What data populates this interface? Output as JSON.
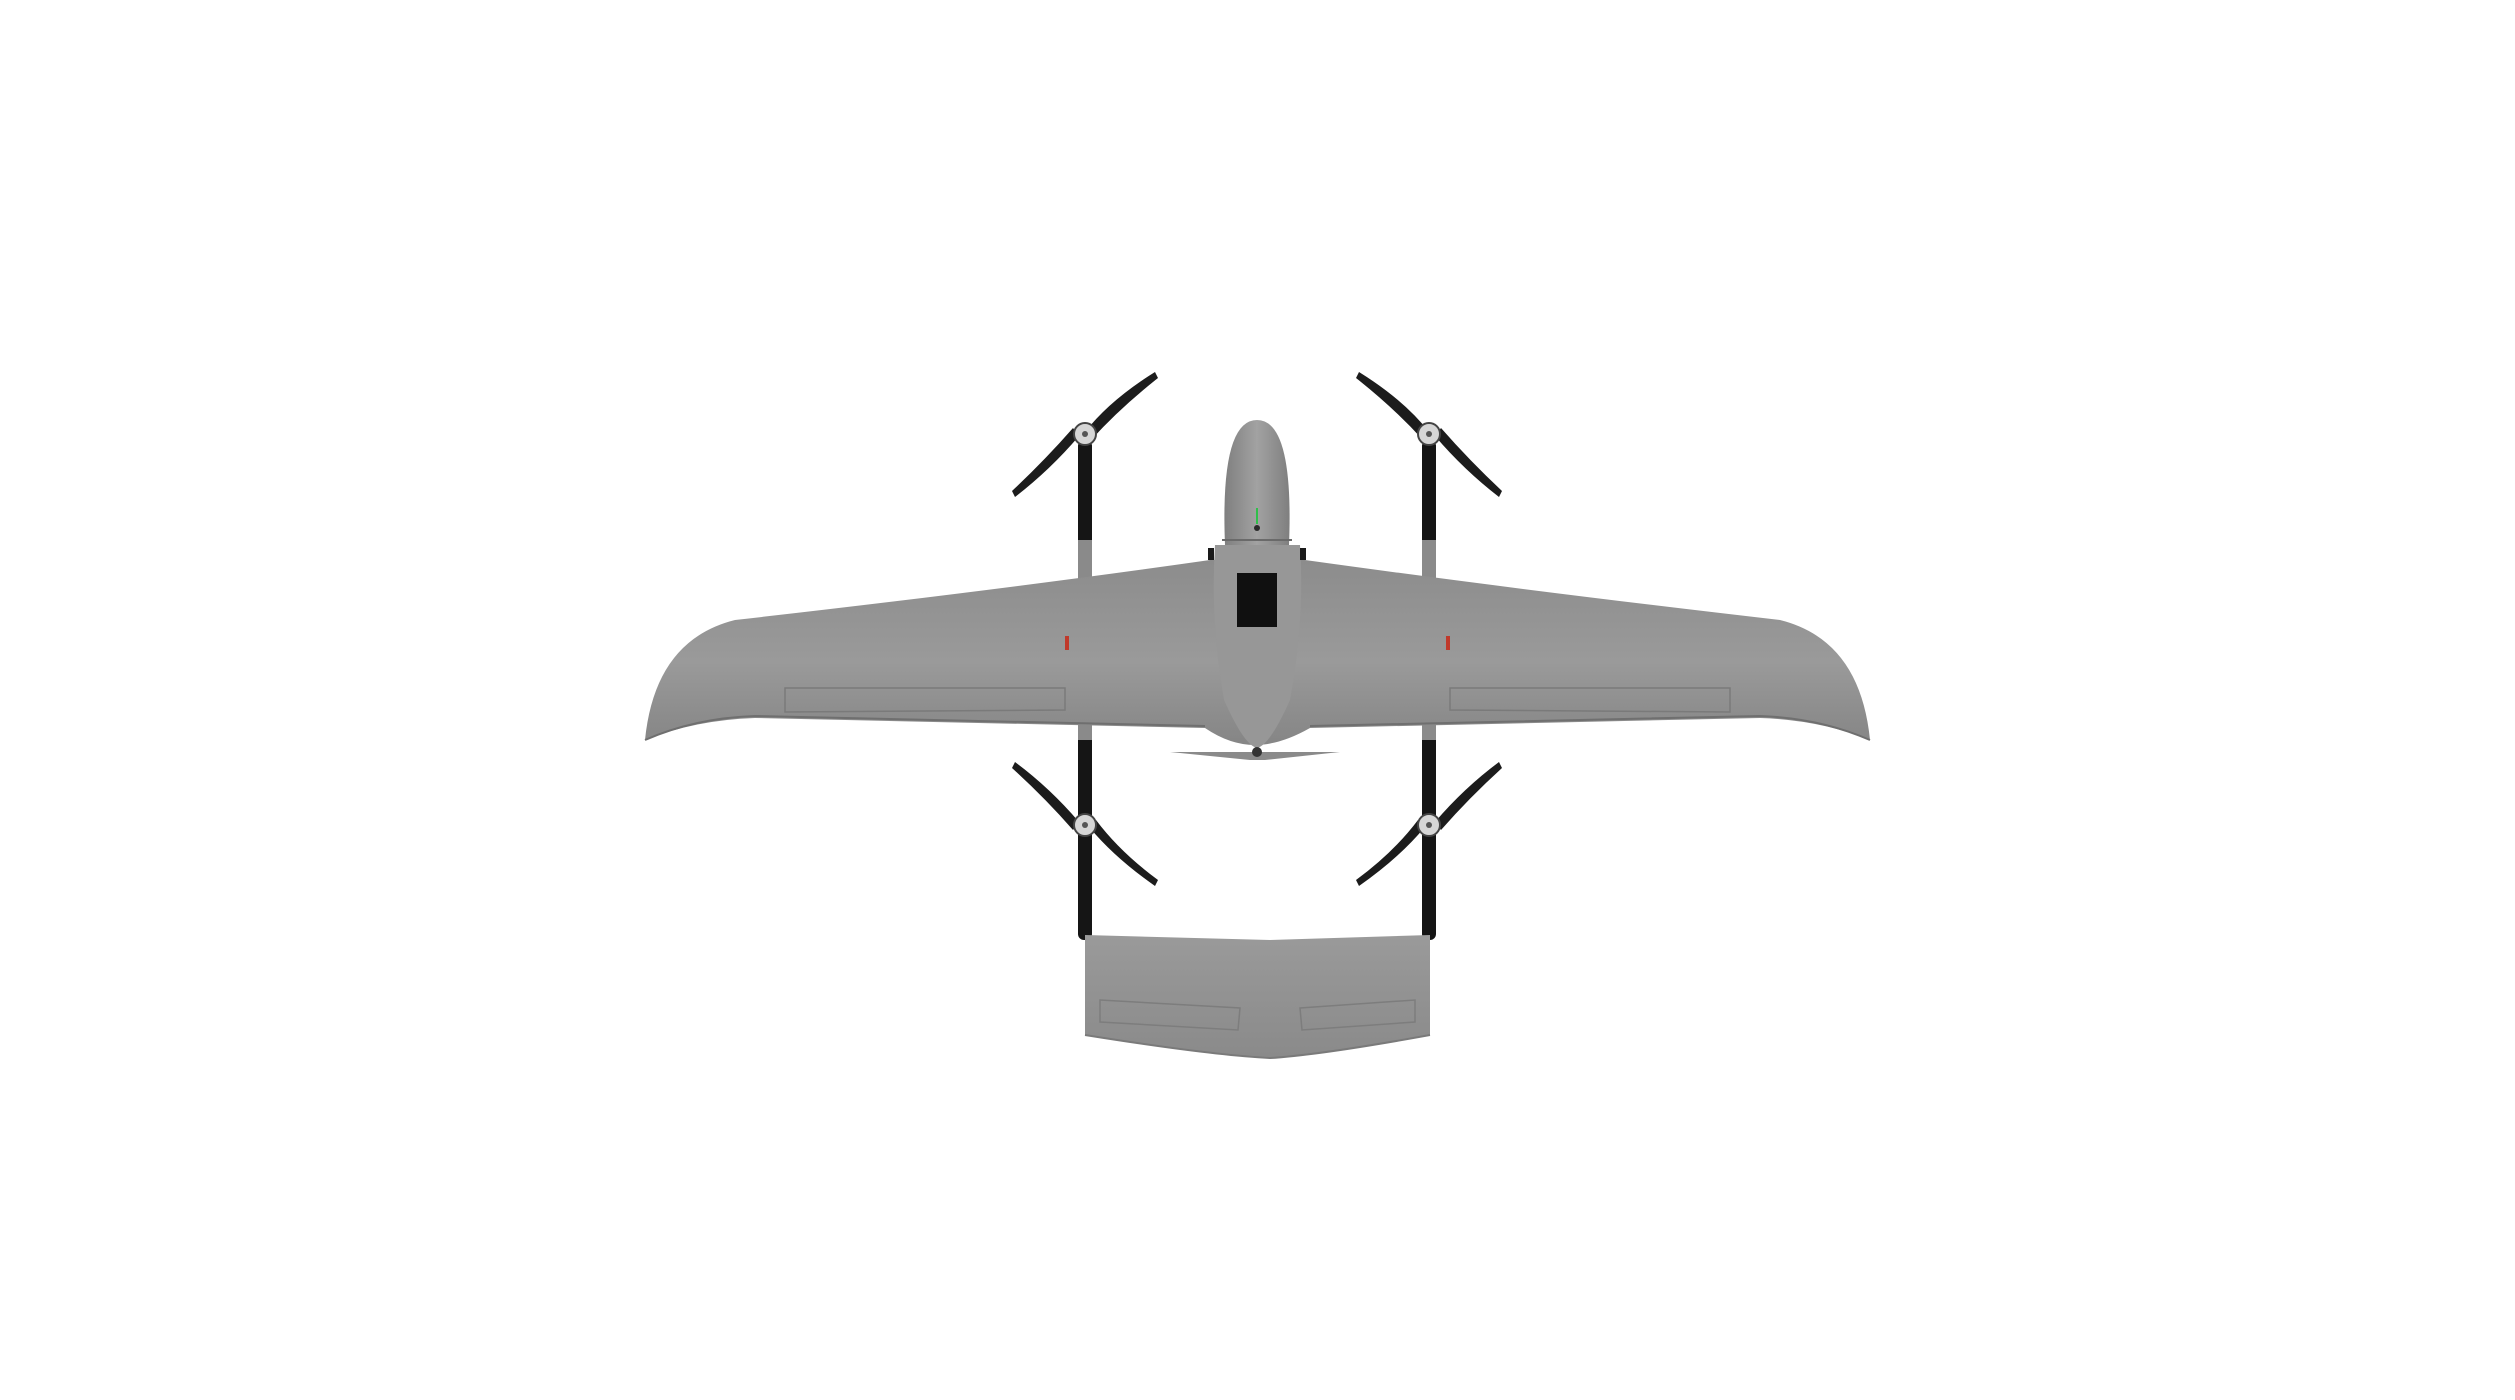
{
  "image": {
    "subject": "vtol-fixed-wing-drone",
    "view": "top-down",
    "background_color": "#ffffff"
  },
  "colors": {
    "airframe": "#8f8f8f",
    "airframe_light": "#a3a3a3",
    "airframe_dark": "#7c7c7c",
    "boom": "#151515",
    "propeller": "#1c1c1c",
    "motor": "#d6d6d6",
    "hatch": "#101010",
    "status_led": "#2fbf4a",
    "nav_light": "#c0392b"
  },
  "components": {
    "vtol_rotor_count": 4,
    "rotor_blades_per_rotor": 2,
    "tail_type": "inverted-v-plank"
  }
}
